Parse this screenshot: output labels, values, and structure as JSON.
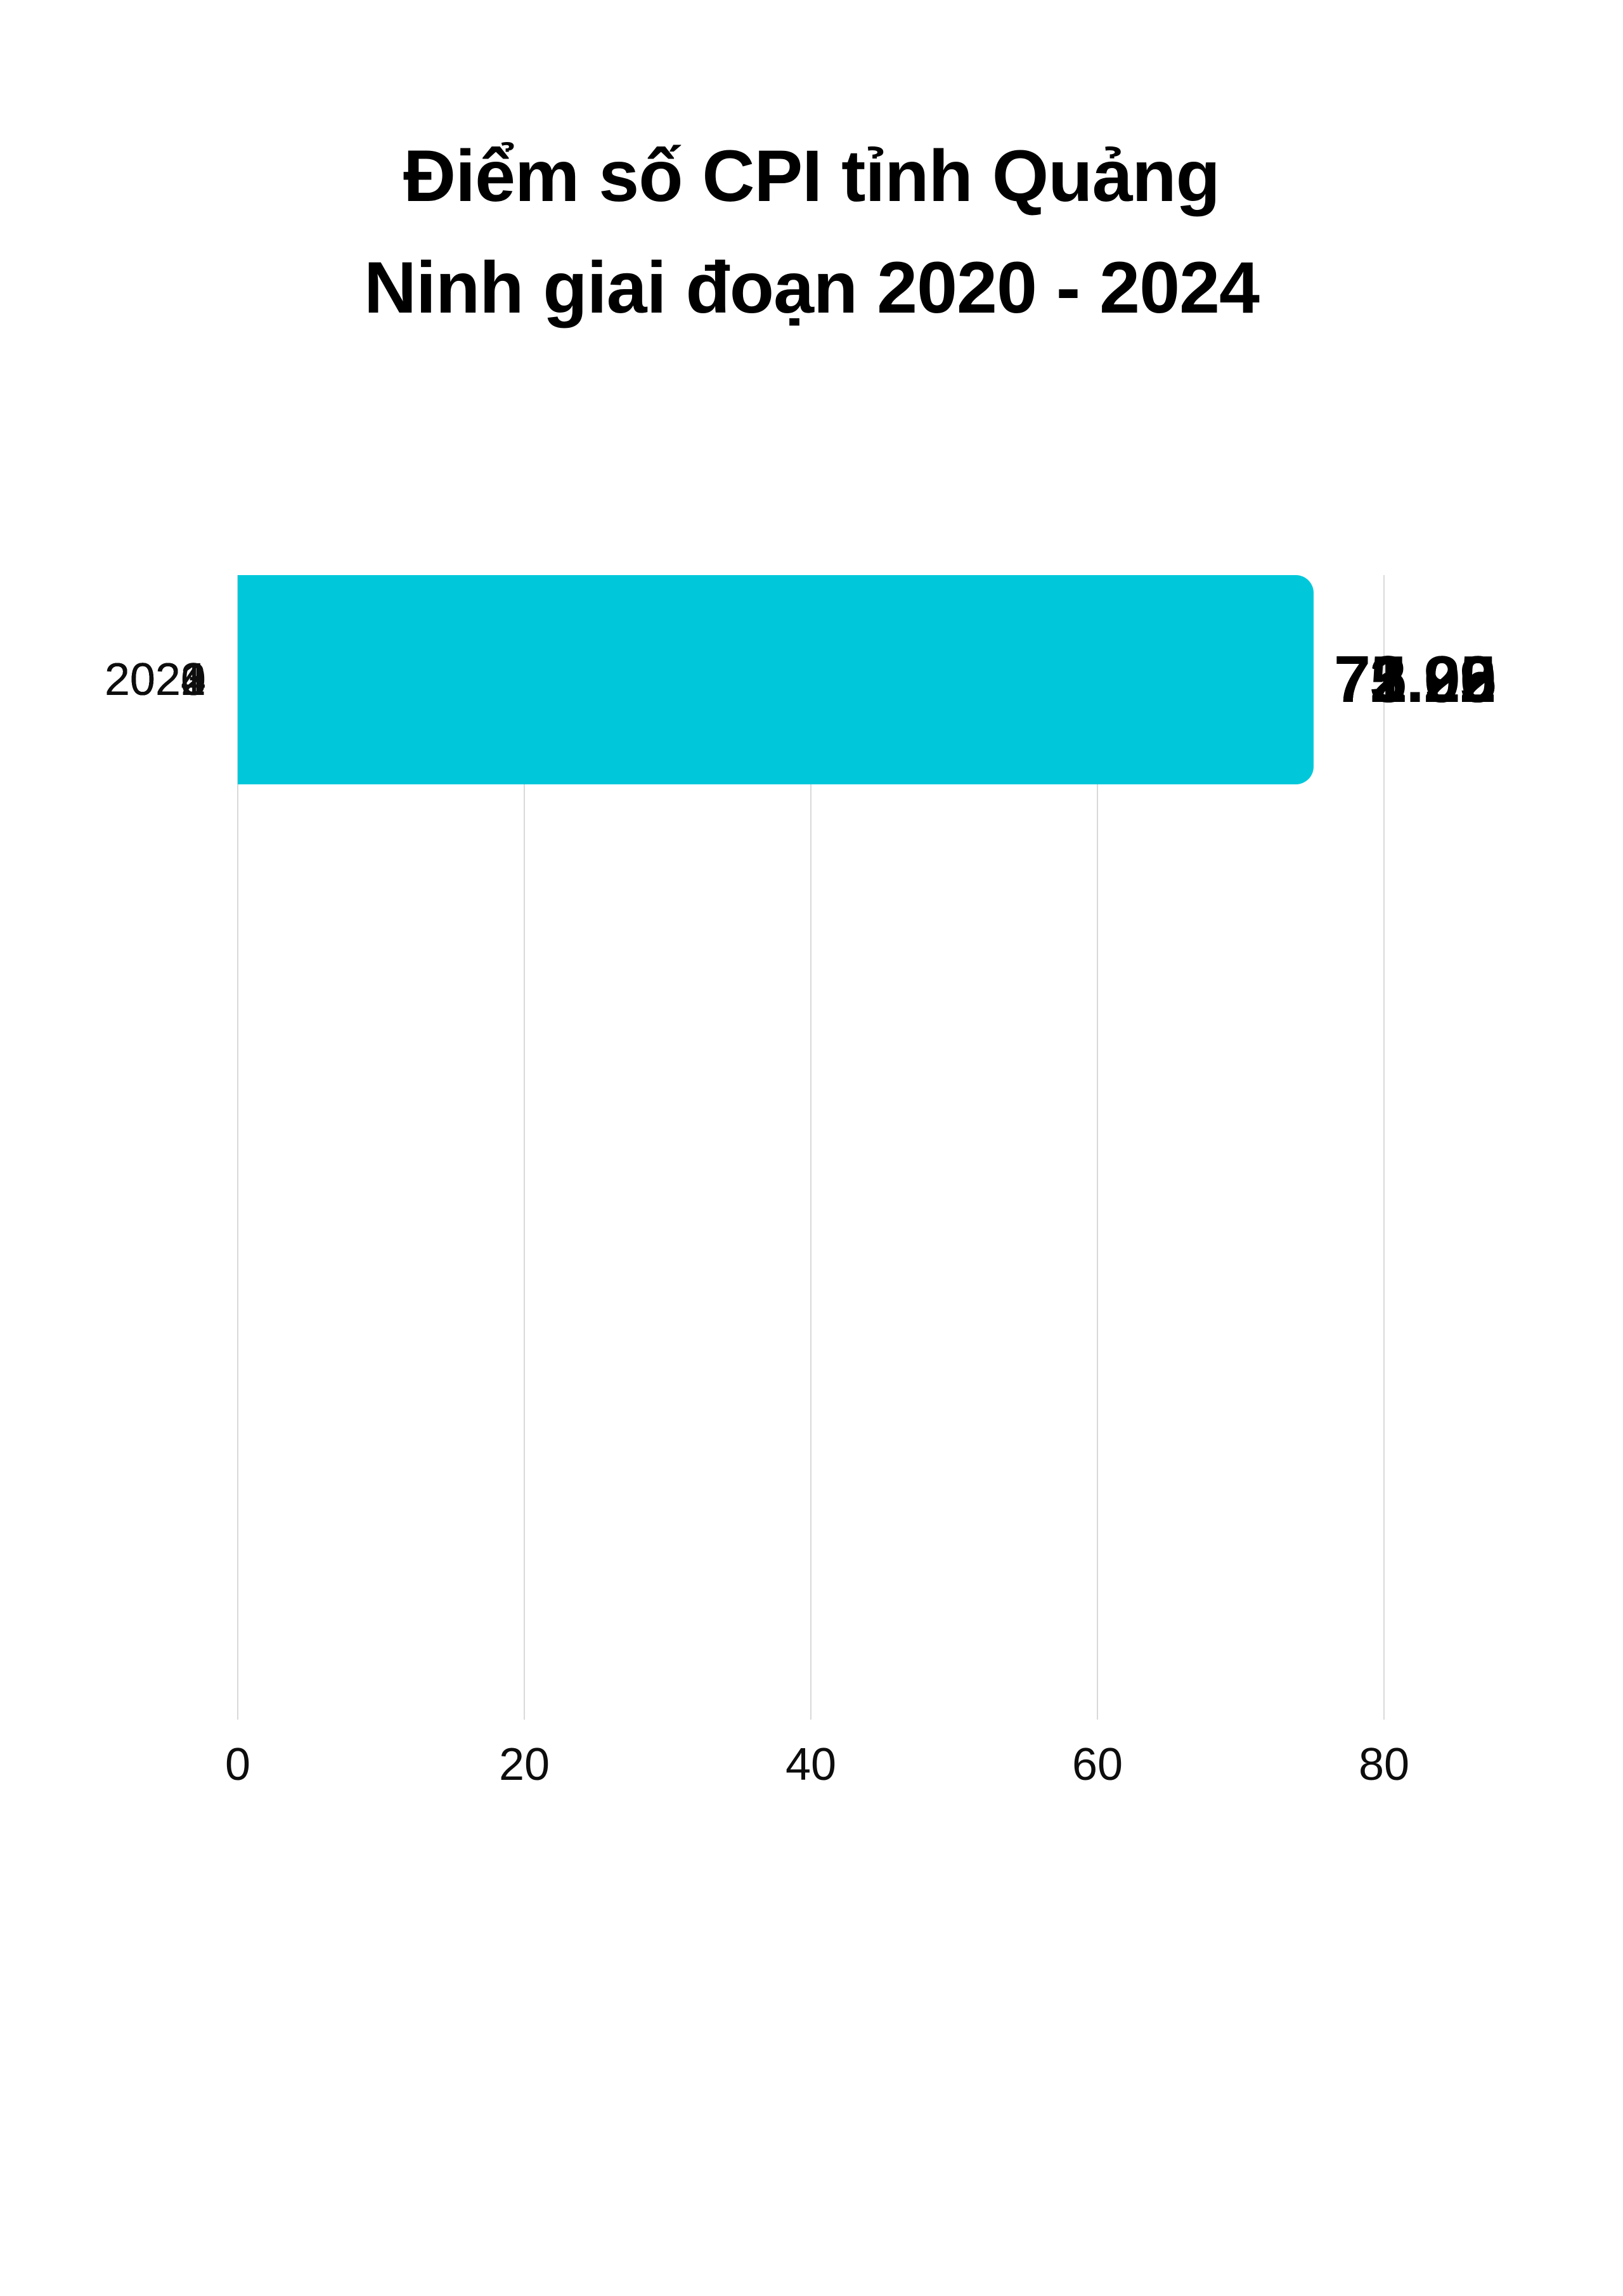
{
  "title": {
    "line1": "Điểm số CPI tỉnh Quảng",
    "line2": "Ninh giai đoạn 2020 - 2024"
  },
  "chart_data": {
    "type": "bar",
    "orientation": "horizontal",
    "title": "Điểm số CPI tỉnh Quảng Ninh giai đoạn 2020 - 2024",
    "categories": [
      "2020",
      "2021",
      "2022",
      "2023",
      "2024"
    ],
    "values": [
      75.09,
      73.02,
      72.95,
      71.25,
      73.2
    ],
    "value_labels": [
      "75.09",
      "73.02",
      "72.95",
      "71.25",
      "73.20"
    ],
    "x_axis": {
      "range": [
        0,
        80
      ],
      "ticks": [
        0,
        20,
        40,
        60,
        80
      ],
      "tick_labels": [
        "0",
        "20",
        "40",
        "60",
        "80"
      ]
    },
    "ylabel": "",
    "xlabel": "",
    "grid": "vertical-gridlines-on",
    "legend": "none",
    "bar_color": "#00C8DA",
    "gridline_color": "#D9D9D9",
    "background_color": "#FFFFFF",
    "text_color": "#000000"
  }
}
